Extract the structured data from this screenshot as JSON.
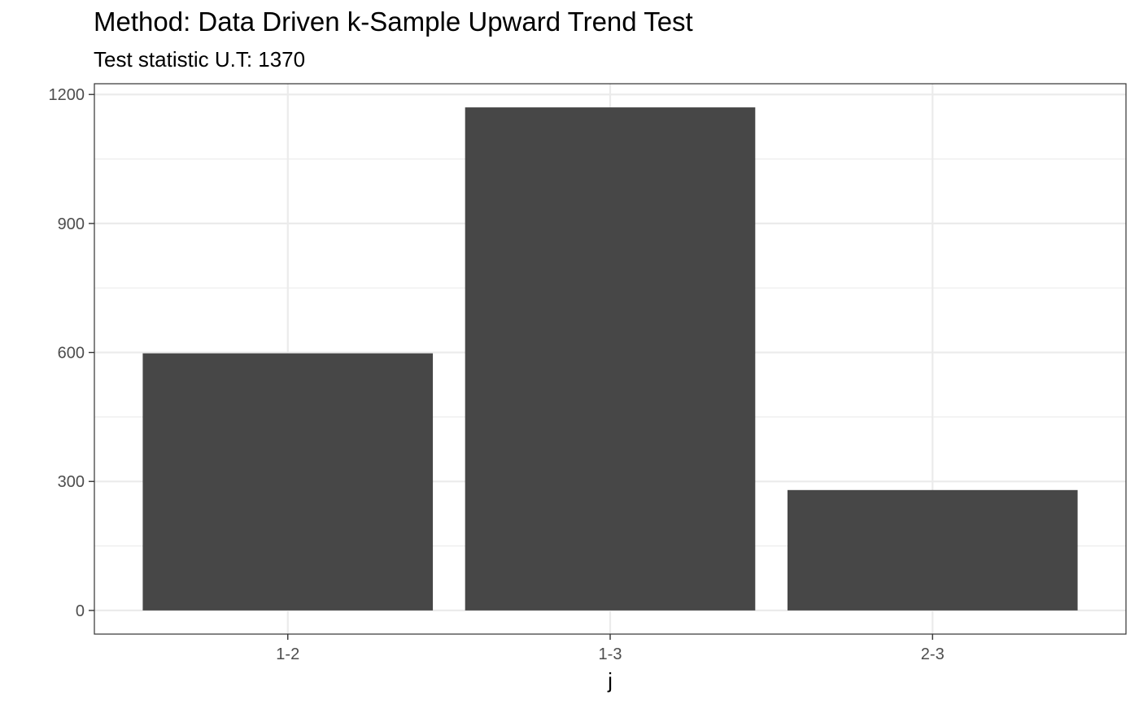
{
  "chart_data": {
    "type": "bar",
    "title": "Method: Data Driven k-Sample Upward Trend Test",
    "subtitle": "Test statistic U.T: 1370",
    "categories": [
      "1-2",
      "1-3",
      "2-3"
    ],
    "values": [
      598,
      1170,
      280
    ],
    "xlabel": "j",
    "ylabel": "",
    "ylim": [
      -55,
      1225
    ],
    "yticks": [
      0,
      300,
      600,
      900,
      1200
    ],
    "grid": true,
    "bar_color": "#474747",
    "grid_color": "#ebebeb",
    "axis_color": "#333333"
  }
}
